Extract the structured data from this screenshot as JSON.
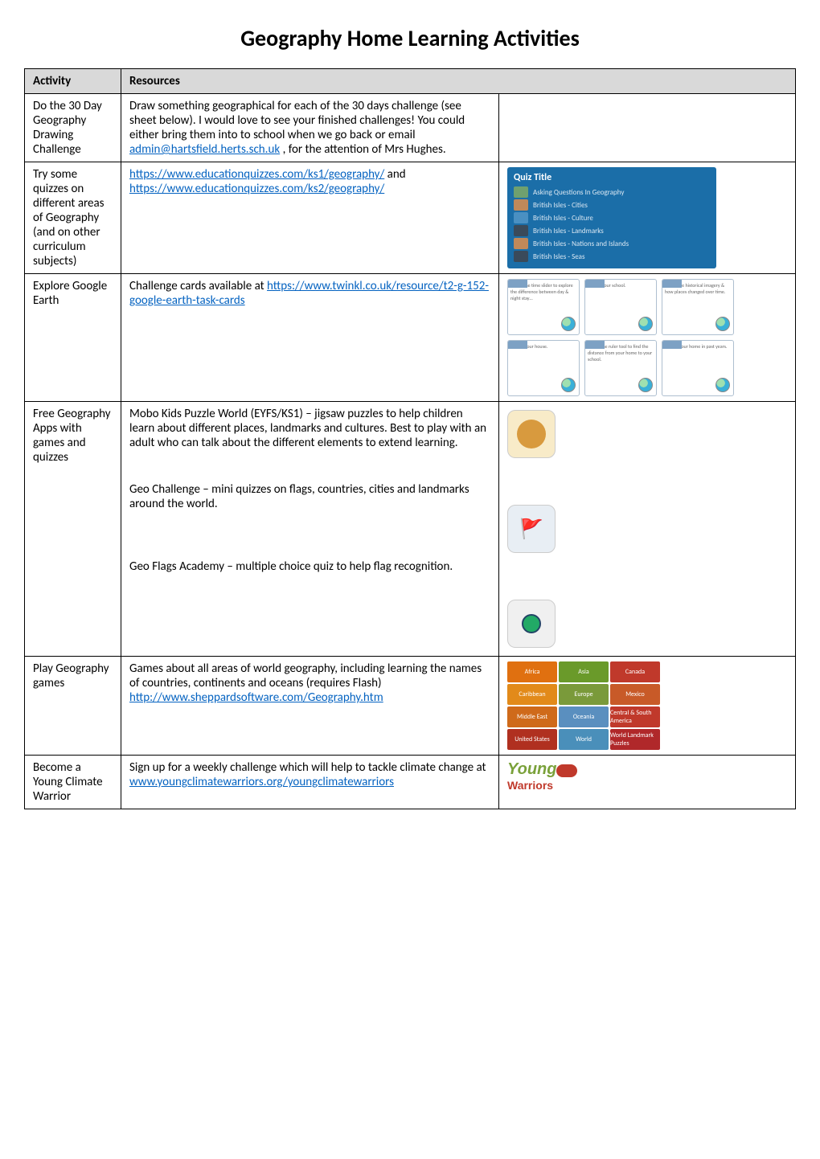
{
  "title": "Geography Home Learning Activities",
  "headers": {
    "activity": "Activity",
    "resources": "Resources"
  },
  "rows": {
    "r1": {
      "activity": "Do the 30 Day Geography Drawing Challenge",
      "text_before": "Draw something geographical for each of the 30 days challenge (see sheet below). I would love to see your finished challenges! You could either bring them into to school when we go back or email ",
      "email": "admin@hartsfield.herts.sch.uk",
      "text_after": " , for the attention of Mrs Hughes."
    },
    "r2": {
      "activity": "Try some quizzes on different areas of Geography (and on other curriculum subjects)",
      "link1": "https://www.educationquizzes.com/ks1/geography/",
      "and": " and ",
      "link2": "https://www.educationquizzes.com/ks2/geography/",
      "quiz_title": "Quiz Title",
      "quiz_items": [
        "Asking Questions In Geography",
        "British Isles - Cities",
        "British Isles - Culture",
        "British Isles - Landmarks",
        "British Isles - Nations and Islands",
        "British Isles - Seas"
      ]
    },
    "r3": {
      "activity": "Explore Google Earth",
      "text": "Challenge cards available at ",
      "link": "https://www.twinkl.co.uk/resource/t2-g-152-google-earth-task-cards",
      "card_snippets": [
        "1. Use the time slider to explore the difference between day & night stay…",
        "2. Find your school.",
        "3. Explore historical imagery & how places changed over time.",
        "4. Find your house.",
        "5. Use the ruler tool to find the distance from your home to your school.",
        "6. Find your home in past years."
      ]
    },
    "r4": {
      "activity": "Free Geography Apps with games and quizzes",
      "p1": "Mobo Kids Puzzle World (EYFS/KS1) – jigsaw puzzles to help children learn about different places, landmarks and cultures. Best to play with an adult who can talk about the different elements to extend learning.",
      "p2": "Geo Challenge – mini quizzes on flags, countries, cities and landmarks around the world.",
      "p3": "Geo Flags Academy – multiple choice quiz to help flag recognition."
    },
    "r5": {
      "activity": "Play Geography games",
      "text": "Games  about all areas of world geography, including learning the names of countries, continents and oceans (requires Flash)",
      "link": "http://www.sheppardsoftware.com/Geography.htm",
      "tiles": [
        {
          "label": "Africa",
          "color": "#e07010"
        },
        {
          "label": "Asia",
          "color": "#6a9a2a"
        },
        {
          "label": "Canada",
          "color": "#c0392b"
        },
        {
          "label": "",
          "color": "transparent"
        },
        {
          "label": "Caribbean",
          "color": "#e28a1a"
        },
        {
          "label": "Europe",
          "color": "#7a9a3a"
        },
        {
          "label": "Mexico",
          "color": "#c85a28"
        },
        {
          "label": "",
          "color": "transparent"
        },
        {
          "label": "Middle East",
          "color": "#cf6a1a"
        },
        {
          "label": "Oceania",
          "color": "#5a8fbf"
        },
        {
          "label": "Central & South America",
          "color": "#c0392b"
        },
        {
          "label": "",
          "color": "transparent"
        },
        {
          "label": "United States",
          "color": "#b03020"
        },
        {
          "label": "World",
          "color": "#4a8fba"
        },
        {
          "label": "World Landmark Puzzles",
          "color": "#b0282a"
        },
        {
          "label": "",
          "color": "transparent"
        }
      ]
    },
    "r6": {
      "activity": "Become a Young Climate Warrior",
      "text": "Sign up for a weekly challenge which will help to tackle climate change at ",
      "link": "www.youngclimatewarriors.org/youngclimatewarriors",
      "logo_top": "Young",
      "logo_bottom": "Warriors"
    }
  }
}
